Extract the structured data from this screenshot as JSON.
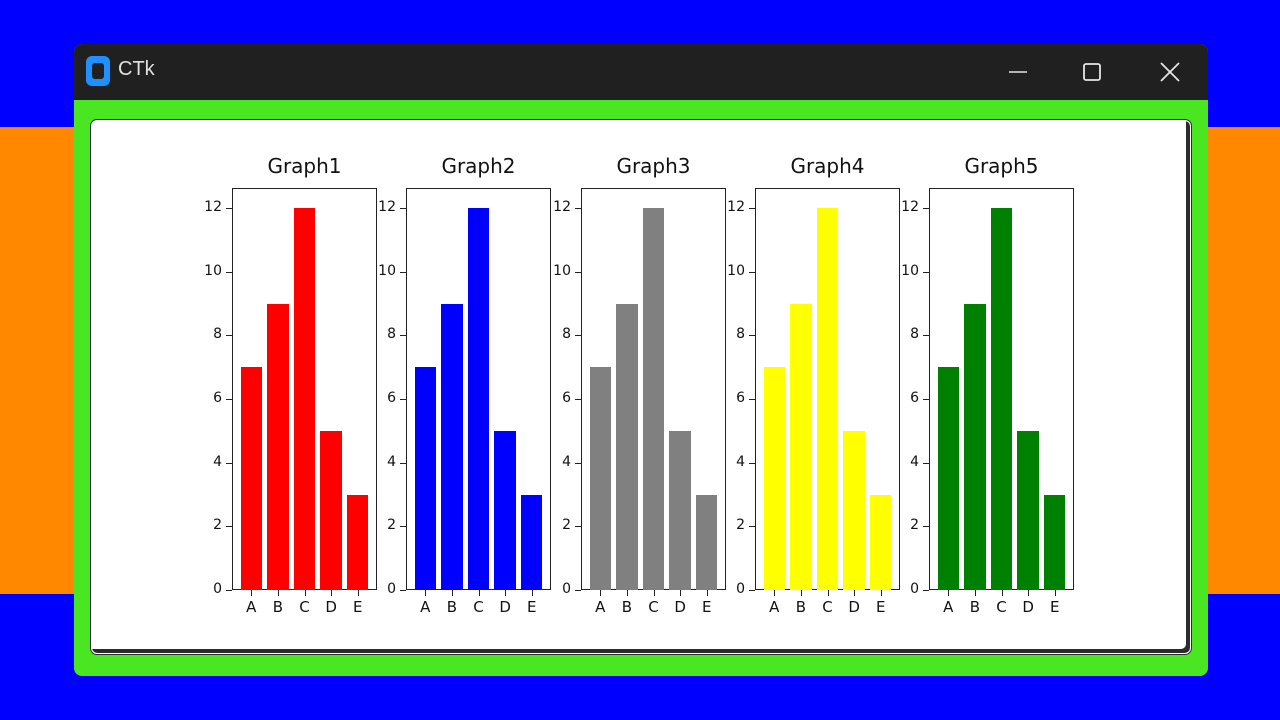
{
  "window": {
    "title": "CTk",
    "controls": {
      "minimize": "—",
      "maximize": "☐",
      "close": "✕"
    },
    "colors": {
      "titlebar": "#202020",
      "frame": "#4ae622",
      "canvas": "#ffffff",
      "bg_top": "#0000ff",
      "bg_middle": "#ff8800",
      "bg_bottom": "#0000ff"
    }
  },
  "chart_data": [
    {
      "type": "bar",
      "title": "Graph1",
      "categories": [
        "A",
        "B",
        "C",
        "D",
        "E"
      ],
      "values": [
        7,
        9,
        12,
        5,
        3
      ],
      "color": "#ff0000",
      "yticks": [
        0,
        2,
        4,
        6,
        8,
        10,
        12
      ],
      "ylim": [
        0,
        12.6
      ],
      "xlabel": "",
      "ylabel": ""
    },
    {
      "type": "bar",
      "title": "Graph2",
      "categories": [
        "A",
        "B",
        "C",
        "D",
        "E"
      ],
      "values": [
        7,
        9,
        12,
        5,
        3
      ],
      "color": "#0000ff",
      "yticks": [
        0,
        2,
        4,
        6,
        8,
        10,
        12
      ],
      "ylim": [
        0,
        12.6
      ],
      "xlabel": "",
      "ylabel": ""
    },
    {
      "type": "bar",
      "title": "Graph3",
      "categories": [
        "A",
        "B",
        "C",
        "D",
        "E"
      ],
      "values": [
        7,
        9,
        12,
        5,
        3
      ],
      "color": "#808080",
      "yticks": [
        0,
        2,
        4,
        6,
        8,
        10,
        12
      ],
      "ylim": [
        0,
        12.6
      ],
      "xlabel": "",
      "ylabel": ""
    },
    {
      "type": "bar",
      "title": "Graph4",
      "categories": [
        "A",
        "B",
        "C",
        "D",
        "E"
      ],
      "values": [
        7,
        9,
        12,
        5,
        3
      ],
      "color": "#ffff00",
      "yticks": [
        0,
        2,
        4,
        6,
        8,
        10,
        12
      ],
      "ylim": [
        0,
        12.6
      ],
      "xlabel": "",
      "ylabel": ""
    },
    {
      "type": "bar",
      "title": "Graph5",
      "categories": [
        "A",
        "B",
        "C",
        "D",
        "E"
      ],
      "values": [
        7,
        9,
        12,
        5,
        3
      ],
      "color": "#008000",
      "yticks": [
        0,
        2,
        4,
        6,
        8,
        10,
        12
      ],
      "ylim": [
        0,
        12.6
      ],
      "xlabel": "",
      "ylabel": ""
    }
  ]
}
